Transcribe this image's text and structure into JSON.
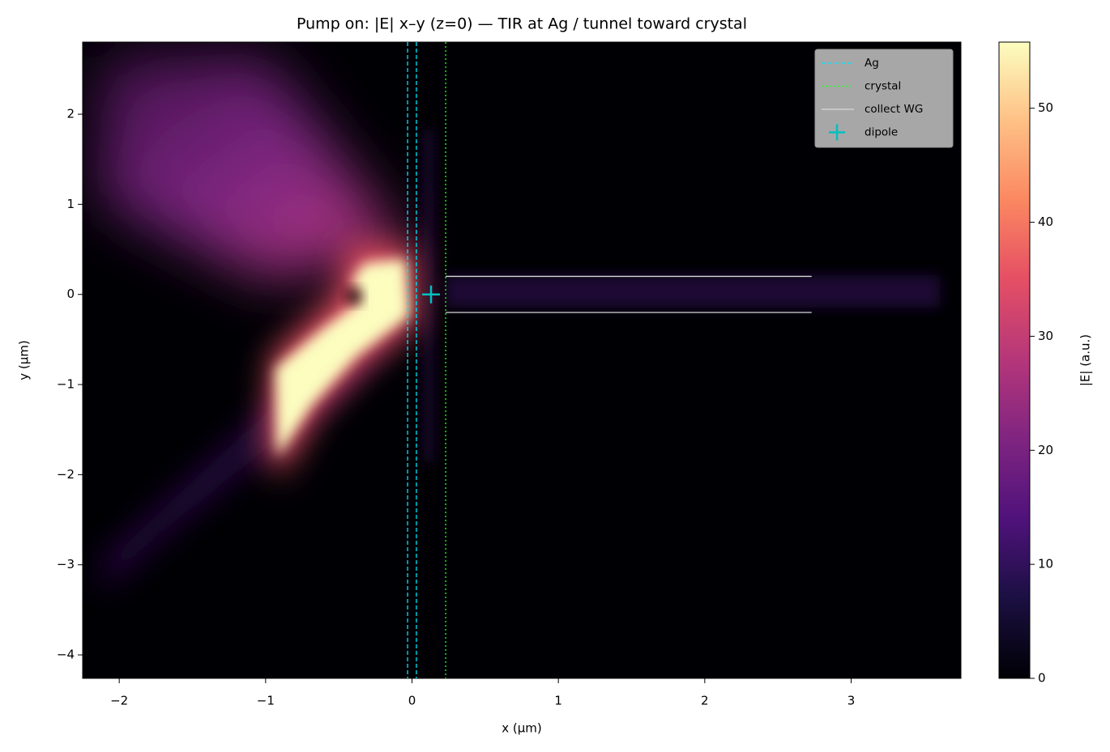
{
  "chart_data": {
    "type": "heatmap",
    "title": "Pump on: |E| x–y (z=0) — TIR at Ag / tunnel toward crystal",
    "x_label": "x (µm)",
    "y_label": "y (µm)",
    "xlim": [
      -2.25,
      3.75
    ],
    "ylim": [
      -4.26,
      2.8
    ],
    "xticks": [
      {
        "value": -2,
        "label": "−2"
      },
      {
        "value": -1,
        "label": "−1"
      },
      0,
      1,
      2,
      3
    ],
    "yticks": [
      {
        "value": -4,
        "label": "−4"
      },
      {
        "value": -3,
        "label": "−3"
      },
      {
        "value": -2,
        "label": "−2"
      },
      {
        "value": -1,
        "label": "−1"
      },
      0,
      1,
      2
    ],
    "colormap": "magma",
    "colorbar": {
      "label": "|E| (a.u.)",
      "lim": [
        0,
        55.8
      ],
      "ticks": [
        0,
        10,
        20,
        30,
        40,
        50
      ]
    },
    "legend": "upper right",
    "overlays": [
      {
        "kind": "vline",
        "name": "Ag",
        "color": "#00e5ff",
        "style": "dashed",
        "x": [
          -0.03,
          0.03
        ]
      },
      {
        "kind": "vline",
        "name": "crystal",
        "color": "#22ff22",
        "style": "dotted",
        "x": [
          0.23
        ]
      },
      {
        "kind": "hline",
        "name": "collect WG",
        "color": "#d8d8d8",
        "y": [
          0.2,
          -0.2
        ],
        "xrange": [
          0.23,
          2.73
        ]
      },
      {
        "kind": "marker",
        "name": "dipole",
        "color": "#00c0c0",
        "x": 0.13,
        "y": 0
      }
    ]
  }
}
